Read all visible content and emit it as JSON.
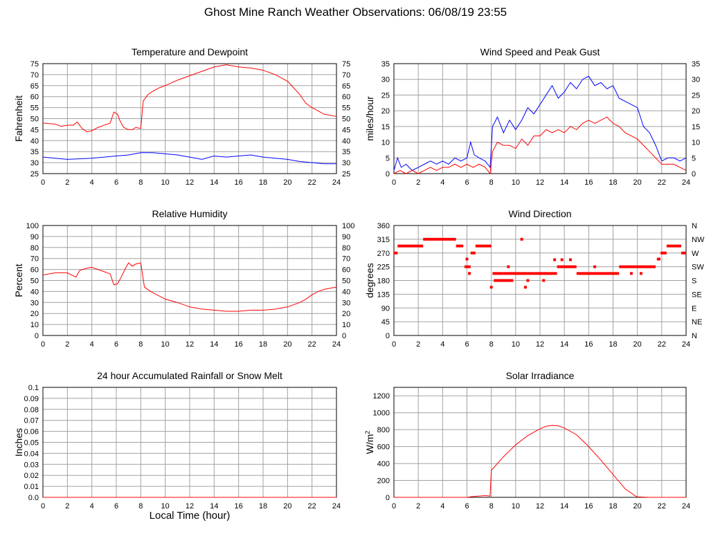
{
  "page": {
    "title": "Ghost Mine Ranch Weather Observations: 06/08/19 23:55",
    "x_axis_label": "Local Time (hour)"
  },
  "colors": {
    "red": "#ff0000",
    "blue": "#0000ff",
    "grid": "#a0a0a0",
    "frame": "#000000"
  },
  "chart_data": [
    {
      "id": "temp",
      "type": "line",
      "title": "Temperature and Dewpoint",
      "ylabel": "Fahrenheit",
      "xlim": [
        0,
        24
      ],
      "ylim": [
        25,
        75
      ],
      "grid": true,
      "xticks": [
        0,
        2,
        4,
        6,
        8,
        10,
        12,
        14,
        16,
        18,
        20,
        22,
        24
      ],
      "yticks": [
        25,
        30,
        35,
        40,
        45,
        50,
        55,
        60,
        65,
        70,
        75
      ],
      "right_ticks": true,
      "series": [
        {
          "color": "red",
          "x": [
            0,
            1,
            1.5,
            2,
            2.5,
            2.8,
            3.2,
            3.6,
            4,
            4.5,
            5,
            5.5,
            5.8,
            6.1,
            6.3,
            6.6,
            7,
            7.3,
            7.6,
            8,
            8.2,
            8.6,
            9,
            9.5,
            10,
            11,
            12,
            13,
            14,
            15,
            16,
            17,
            18,
            19,
            20,
            20.5,
            21,
            21.5,
            22,
            23,
            24
          ],
          "y": [
            48,
            47.5,
            46.5,
            47,
            47,
            48.5,
            45.5,
            44,
            44.5,
            46,
            47,
            48,
            53,
            52,
            49,
            46,
            45,
            45,
            46,
            45.5,
            58,
            61,
            62.5,
            64,
            65,
            67.5,
            69.5,
            71.5,
            73.5,
            74.5,
            73.5,
            73,
            72,
            70,
            67,
            64,
            61,
            57,
            55,
            52,
            51
          ]
        },
        {
          "color": "blue",
          "x": [
            0,
            2,
            4,
            6,
            7,
            8,
            9,
            10,
            11,
            12,
            13,
            14,
            15,
            16,
            17,
            18,
            19,
            20,
            21,
            22,
            23,
            24
          ],
          "y": [
            32.5,
            31.5,
            32,
            33,
            33.5,
            34.5,
            34.5,
            34,
            33.5,
            32.5,
            31.5,
            33,
            32.5,
            33,
            33.5,
            32.5,
            32,
            31.5,
            30.5,
            30,
            29.5,
            29.5
          ]
        }
      ]
    },
    {
      "id": "wind",
      "type": "line",
      "title": "Wind Speed and Peak Gust",
      "ylabel": "miles/hour",
      "xlim": [
        0,
        24
      ],
      "ylim": [
        0,
        35
      ],
      "grid": true,
      "xticks": [
        0,
        2,
        4,
        6,
        8,
        10,
        12,
        14,
        16,
        18,
        20,
        22,
        24
      ],
      "yticks": [
        0,
        5,
        10,
        15,
        20,
        25,
        30,
        35
      ],
      "right_ticks": true,
      "series": [
        {
          "color": "blue",
          "x": [
            0,
            0.3,
            0.6,
            1,
            1.5,
            2,
            2.5,
            3,
            3.5,
            4,
            4.5,
            5,
            5.5,
            6,
            6.3,
            6.6,
            7,
            7.5,
            7.9,
            8.1,
            8.5,
            9,
            9.5,
            10,
            10.5,
            11,
            11.5,
            12,
            12.5,
            13,
            13.5,
            14,
            14.5,
            15,
            15.5,
            16,
            16.5,
            17,
            17.5,
            18,
            18.5,
            19,
            19.5,
            20,
            20.5,
            21,
            21.5,
            22,
            22.5,
            23,
            23.5,
            24
          ],
          "y": [
            1,
            5,
            2,
            3,
            1,
            2,
            3,
            4,
            3,
            4,
            3,
            5,
            4,
            5,
            10,
            6,
            5,
            4,
            2,
            15,
            18,
            13,
            17,
            14,
            17,
            21,
            19,
            22,
            25,
            28,
            24,
            26,
            29,
            27,
            30,
            31,
            28,
            29,
            27,
            28,
            24,
            23,
            22,
            21,
            15,
            13,
            9,
            4,
            5,
            5,
            4,
            5
          ]
        },
        {
          "color": "red",
          "x": [
            0,
            0.5,
            1,
            1.5,
            2,
            2.5,
            3,
            3.5,
            4,
            4.5,
            5,
            5.5,
            6,
            6.5,
            7,
            7.5,
            7.9,
            8.1,
            8.5,
            9,
            9.5,
            10,
            10.5,
            11,
            11.5,
            12,
            12.5,
            13,
            13.5,
            14,
            14.5,
            15,
            15.5,
            16,
            16.5,
            17,
            17.5,
            18,
            18.5,
            19,
            19.5,
            20,
            20.5,
            21,
            21.5,
            22,
            22.5,
            23,
            23.5,
            24
          ],
          "y": [
            0,
            1,
            0,
            1,
            0,
            1,
            2,
            1,
            2,
            2,
            3,
            2,
            3,
            2,
            3,
            2,
            0,
            7,
            10,
            9,
            9,
            8,
            11,
            9,
            12,
            12,
            14,
            13,
            14,
            13,
            15,
            14,
            16,
            17,
            16,
            17,
            18,
            16,
            15,
            13,
            12,
            11,
            9,
            7,
            5,
            3,
            3,
            3,
            2,
            1
          ]
        }
      ]
    },
    {
      "id": "rh",
      "type": "line",
      "title": "Relative Humidity",
      "ylabel": "Percent",
      "xlim": [
        0,
        24
      ],
      "ylim": [
        0,
        100
      ],
      "grid": true,
      "xticks": [
        0,
        2,
        4,
        6,
        8,
        10,
        12,
        14,
        16,
        18,
        20,
        22,
        24
      ],
      "yticks": [
        0,
        10,
        20,
        30,
        40,
        50,
        60,
        70,
        80,
        90,
        100
      ],
      "right_ticks": true,
      "series": [
        {
          "color": "red",
          "x": [
            0,
            1,
            2,
            2.7,
            3,
            3.5,
            4,
            4.5,
            5,
            5.5,
            5.8,
            6.1,
            6.4,
            6.7,
            7,
            7.3,
            7.6,
            8,
            8.3,
            8.8,
            9.5,
            10,
            11,
            12,
            13,
            14,
            15,
            16,
            17,
            18,
            19,
            20,
            21,
            21.5,
            22,
            22.5,
            23,
            24
          ],
          "y": [
            55,
            57,
            57,
            53,
            59,
            61,
            62,
            60,
            58,
            56,
            46,
            47,
            53,
            60,
            66,
            63,
            65,
            66,
            44,
            40,
            36,
            33,
            30,
            26,
            24,
            23,
            22,
            22,
            23,
            23,
            24,
            26,
            30,
            33,
            37,
            40,
            42,
            44
          ]
        }
      ]
    },
    {
      "id": "wdir",
      "type": "scatter",
      "title": "Wind Direction",
      "ylabel": "degrees",
      "xlim": [
        0,
        24
      ],
      "ylim": [
        0,
        360
      ],
      "grid": true,
      "xticks": [
        0,
        2,
        4,
        6,
        8,
        10,
        12,
        14,
        16,
        18,
        20,
        22,
        24
      ],
      "yticks": [
        0,
        45,
        90,
        135,
        180,
        225,
        270,
        315,
        360
      ],
      "right_labels": [
        "N",
        "NE",
        "E",
        "SE",
        "S",
        "SW",
        "W",
        "NW",
        "N"
      ],
      "series": [
        {
          "color": "red",
          "segments": [
            [
              0,
              0.3,
              270
            ],
            [
              0.3,
              2.4,
              293
            ],
            [
              2.4,
              5.1,
              315
            ],
            [
              5.1,
              5.7,
              293
            ],
            [
              5.8,
              6.3,
              225
            ],
            [
              6.3,
              6.7,
              270
            ],
            [
              6.7,
              8,
              293
            ],
            [
              8.1,
              9,
              203
            ],
            [
              8.2,
              9.8,
              180
            ],
            [
              9,
              11.6,
              203
            ],
            [
              11.6,
              13.4,
              203
            ],
            [
              13.4,
              15,
              225
            ],
            [
              15,
              18.5,
              203
            ],
            [
              18.5,
              21.5,
              225
            ],
            [
              21.6,
              21.9,
              250
            ],
            [
              21.9,
              22.4,
              270
            ],
            [
              22.4,
              23.6,
              293
            ],
            [
              23.6,
              24,
              270
            ]
          ],
          "points": [
            [
              8,
              158
            ],
            [
              6,
              250
            ],
            [
              6.2,
              203
            ],
            [
              9.4,
              225
            ],
            [
              10.5,
              315
            ],
            [
              10.8,
              158
            ],
            [
              11,
              180
            ],
            [
              12.3,
              180
            ],
            [
              13.2,
              248
            ],
            [
              13.8,
              248
            ],
            [
              14.5,
              248
            ],
            [
              16.5,
              225
            ],
            [
              19.5,
              203
            ],
            [
              20.3,
              203
            ]
          ]
        }
      ]
    },
    {
      "id": "rain",
      "type": "line",
      "title": "24 hour Accumulated Rainfall or Snow Melt",
      "ylabel": "Inches",
      "xlim": [
        0,
        24
      ],
      "ylim": [
        0,
        0.1
      ],
      "grid": true,
      "xticks": [
        0,
        2,
        4,
        6,
        8,
        10,
        12,
        14,
        16,
        18,
        20,
        22,
        24
      ],
      "yticks": [
        0,
        0.01,
        0.02,
        0.03,
        0.04,
        0.05,
        0.06,
        0.07,
        0.08,
        0.09,
        0.1
      ],
      "ytick_labels": [
        "0.0",
        "0.01",
        "0.02",
        "0.03",
        "0.04",
        "0.05",
        "0.06",
        "0.07",
        "0.08",
        "0.09",
        "0.1"
      ],
      "series": [
        {
          "color": "red",
          "x": [
            0,
            24
          ],
          "y": [
            0,
            0
          ]
        }
      ]
    },
    {
      "id": "solar",
      "type": "line",
      "title": "Solar Irradiance",
      "ylabel": "W/m",
      "xlim": [
        0,
        24
      ],
      "ylim": [
        0,
        1300
      ],
      "grid": true,
      "xticks": [
        0,
        2,
        4,
        6,
        8,
        10,
        12,
        14,
        16,
        18,
        20,
        22,
        24
      ],
      "yticks": [
        0,
        200,
        400,
        600,
        800,
        1000,
        1200
      ],
      "series": [
        {
          "color": "red",
          "x": [
            0,
            6,
            6.5,
            7,
            7.5,
            7.9,
            8,
            9,
            10,
            11,
            12,
            12.5,
            13,
            13.5,
            14,
            15,
            16,
            17,
            18,
            19,
            19.8,
            20,
            21,
            24
          ],
          "y": [
            0,
            0,
            10,
            15,
            20,
            15,
            320,
            480,
            620,
            730,
            810,
            840,
            850,
            845,
            820,
            740,
            600,
            440,
            270,
            100,
            20,
            5,
            0,
            0
          ]
        }
      ]
    }
  ]
}
